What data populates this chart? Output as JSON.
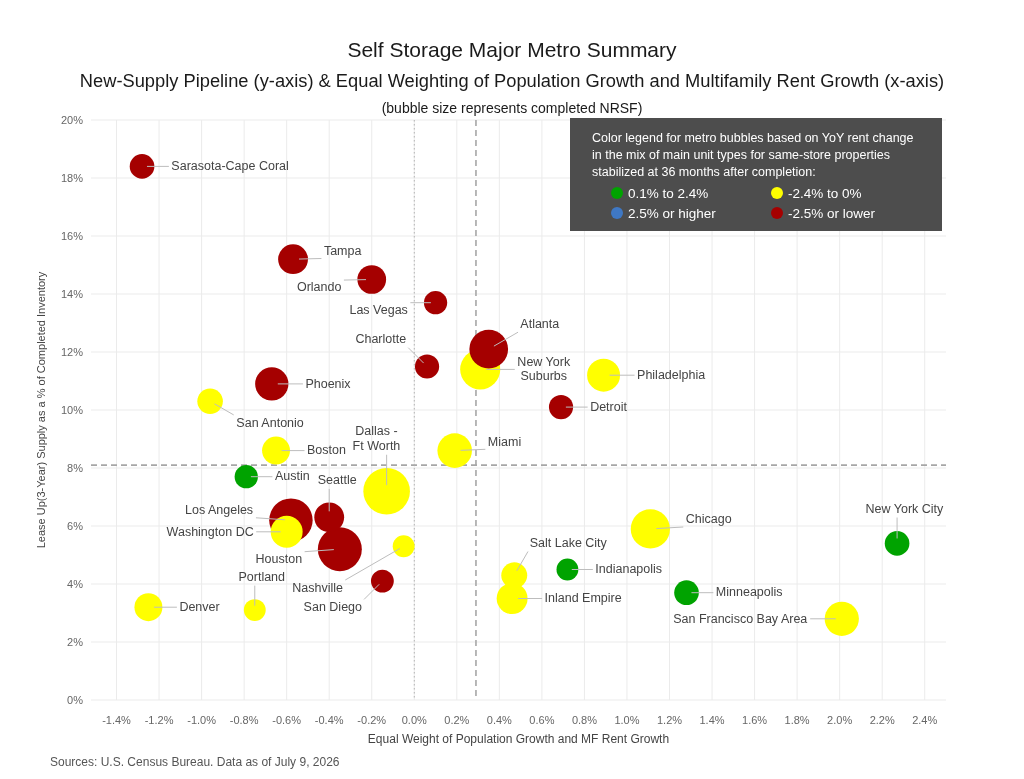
{
  "chart_data": {
    "type": "bubble",
    "title": "Self Storage Major Metro Summary",
    "subtitle": "New-Supply Pipeline (y-axis) & Equal Weighting of Population Growth and Multifamily Rent Growth (x-axis)",
    "xlabel": "Equal Weight of Population Growth and MF Rent Growth",
    "ylabel": "Lease Up(3-Year) Supply as a % of Completed Inventory",
    "legend_title": "Color legend for metro bubbles based on YoY rent change in the mix of main unit types for same-store properties stabilized at 36 months after completion:",
    "xlim": [
      -1.52,
      2.5
    ],
    "xticks": [
      {
        "value": -1.4,
        "label": "-1.4%"
      },
      {
        "value": -1.2,
        "label": "-1.2%"
      },
      {
        "value": -1.0,
        "label": "-1.0%"
      },
      {
        "value": -0.8,
        "label": "-0.8%"
      },
      {
        "value": -0.6,
        "label": "-0.6%"
      },
      {
        "value": -0.4,
        "label": "-0.4%"
      },
      {
        "value": -0.2,
        "label": "-0.2%"
      },
      {
        "value": 0,
        "label": "0.0%"
      },
      {
        "value": 0.2,
        "label": "0.2%"
      },
      {
        "value": 0.4,
        "label": "0.4%"
      },
      {
        "value": 0.6,
        "label": "0.6%"
      },
      {
        "value": 0.8,
        "label": "0.8%"
      },
      {
        "value": 1.0,
        "label": "1.0%"
      },
      {
        "value": 1.2,
        "label": "1.2%"
      },
      {
        "value": 1.4,
        "label": "1.4%"
      },
      {
        "value": 1.6,
        "label": "1.6%"
      },
      {
        "value": 1.8,
        "label": "1.8%"
      },
      {
        "value": 2.0,
        "label": "2.0%"
      },
      {
        "value": 2.2,
        "label": "2.2%"
      },
      {
        "value": 2.4,
        "label": "2.4%"
      }
    ],
    "ylim": [
      0,
      20
    ],
    "yticks": [
      {
        "value": 0,
        "label": "0%"
      },
      {
        "value": 2,
        "label": "2%"
      },
      {
        "value": 4,
        "label": "4%"
      },
      {
        "value": 6,
        "label": "6%"
      },
      {
        "value": 8,
        "label": "8%"
      },
      {
        "value": 10,
        "label": "10%"
      },
      {
        "value": 12,
        "label": "12%"
      },
      {
        "value": 14,
        "label": "14%"
      },
      {
        "value": 16,
        "label": "16%"
      },
      {
        "value": 18,
        "label": "18%"
      },
      {
        "value": 20,
        "label": "20%"
      }
    ],
    "grid": true,
    "legend": "top right",
    "series": [
      {
        "name": "0.1% to 2.4%",
        "color": "#00a300",
        "x": [
          -0.79,
          0.72,
          1.28,
          2.27
        ],
        "values": [
          7.7,
          4.5,
          3.7,
          5.4
        ],
        "sizes": [
          0.25,
          0.22,
          0.28,
          0.28
        ]
      },
      {
        "name": "2.5% or higher",
        "color": "#3f78c4"
      },
      {
        "name": "-2.4% to 0%",
        "color": "#ffff00",
        "x": [
          0.31,
          -0.96,
          0.89,
          -0.65,
          0.19,
          -0.13,
          -0.6,
          -0.05,
          -1.25,
          -0.75,
          0.47,
          0.46,
          1.11,
          2.01
        ],
        "values": [
          11.4,
          10.3,
          11.2,
          8.6,
          8.6,
          7.2,
          5.8,
          5.3,
          3.2,
          3.1,
          4.3,
          3.5,
          5.9,
          2.8
        ],
        "sizes": [
          0.74,
          0.3,
          0.5,
          0.36,
          0.55,
          1,
          0.47,
          0.22,
          0.36,
          0.22,
          0.31,
          0.44,
          0.71,
          0.54
        ]
      },
      {
        "name": "-2.5% or lower",
        "color": "#a50000",
        "x": [
          -1.28,
          -0.57,
          -0.2,
          0.1,
          0.35,
          0.06,
          -0.67,
          0.69,
          -0.58,
          -0.4,
          -0.35,
          -0.15
        ],
        "values": [
          18.4,
          15.2,
          14.5,
          13.7,
          12.1,
          11.5,
          10.9,
          10.1,
          6.2,
          6.3,
          5.2,
          4.1
        ],
        "sizes": [
          0.28,
          0.41,
          0.38,
          0.25,
          0.69,
          0.27,
          0.51,
          0.27,
          0.87,
          0.41,
          0.89,
          0.24
        ]
      }
    ],
    "ref_lines": [
      {
        "axis": "x",
        "value": 0.29,
        "color": "#a6a6a6",
        "line_style": "dashed"
      },
      {
        "axis": "y",
        "value": 8.1,
        "color": "#a6a6a6",
        "line_style": "dashed"
      },
      {
        "axis": "x",
        "value": 0,
        "color": "#b3b3b3",
        "line_style": "dotted"
      }
    ],
    "annotations": [
      "(bubble size represents completed NRSF)",
      {
        "text": "Sarasota-Cape Coral",
        "x": -1.28,
        "y": 18.4
      },
      {
        "text": "Tampa",
        "x": -0.57,
        "y": 15.2
      },
      {
        "text": "Orlando",
        "x": -0.2,
        "y": 14.5
      },
      {
        "text": "Las Vegas",
        "x": 0.1,
        "y": 13.7
      },
      {
        "text": "Atlanta",
        "x": 0.35,
        "y": 12.1
      },
      {
        "text": "Charlotte",
        "x": 0.06,
        "y": 11.5
      },
      {
        "text": "New York Suburbs",
        "x": 0.31,
        "y": 11.4
      },
      {
        "text": "Philadelphia",
        "x": 0.89,
        "y": 11.2
      },
      {
        "text": "Phoenix",
        "x": -0.67,
        "y": 10.9
      },
      {
        "text": "San Antonio",
        "x": -0.96,
        "y": 10.3
      },
      {
        "text": "Detroit",
        "x": 0.69,
        "y": 10.1
      },
      {
        "text": "Boston",
        "x": -0.65,
        "y": 8.6
      },
      {
        "text": "Miami",
        "x": 0.19,
        "y": 8.6
      },
      {
        "text": "Austin",
        "x": -0.79,
        "y": 7.7
      },
      {
        "text": "Dallas - Ft Worth",
        "x": -0.13,
        "y": 7.2
      },
      {
        "text": "Seattle",
        "x": -0.4,
        "y": 6.3
      },
      {
        "text": "Los Angeles",
        "x": -0.58,
        "y": 6.2
      },
      {
        "text": "Chicago",
        "x": 1.11,
        "y": 5.9
      },
      {
        "text": "Washington DC",
        "x": -0.6,
        "y": 5.8
      },
      {
        "text": "New York City",
        "x": 2.27,
        "y": 5.4
      },
      {
        "text": "Nashville",
        "x": -0.05,
        "y": 5.3
      },
      {
        "text": "Houston",
        "x": -0.35,
        "y": 5.2
      },
      {
        "text": "Indianapolis",
        "x": 0.72,
        "y": 4.5
      },
      {
        "text": "Salt Lake City",
        "x": 0.47,
        "y": 4.3
      },
      {
        "text": "San Diego",
        "x": -0.15,
        "y": 4.1
      },
      {
        "text": "Minneapolis",
        "x": 1.28,
        "y": 3.7
      },
      {
        "text": "Inland Empire",
        "x": 0.46,
        "y": 3.5
      },
      {
        "text": "Denver",
        "x": -1.25,
        "y": 3.2
      },
      {
        "text": "Portland",
        "x": -0.75,
        "y": 3.1
      },
      {
        "text": "San Francisco Bay Area",
        "x": 2.01,
        "y": 2.8
      },
      "Sources: U.S. Census Bureau. Data as of July 9, 2026"
    ]
  }
}
